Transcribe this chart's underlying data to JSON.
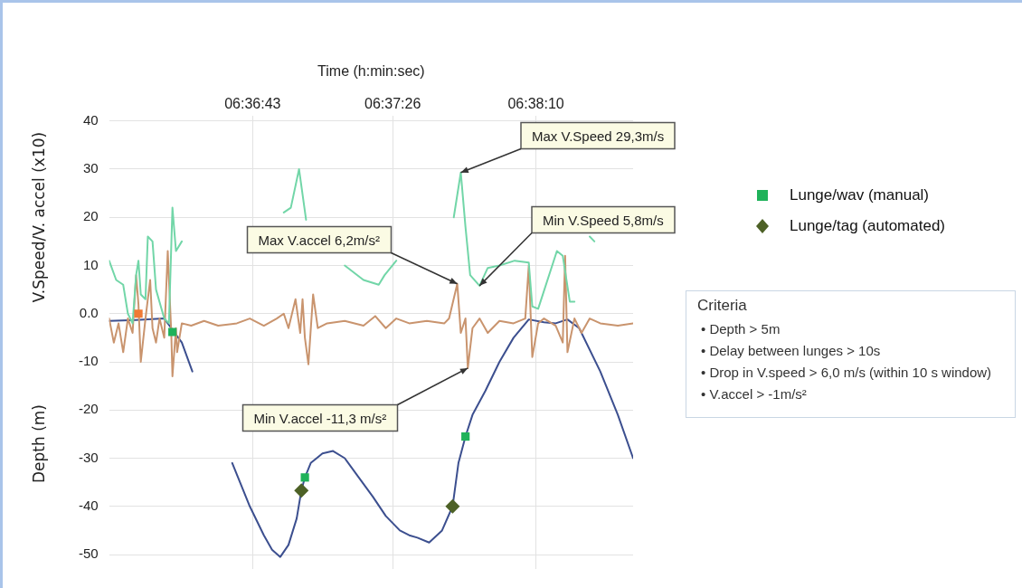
{
  "chart_data": {
    "type": "line",
    "xlabel": "Time (h:min:sec)",
    "ylabel": "V.Speed/V. accel (x10)",
    "y2label": "Depth (m)",
    "xlim": [
      6.5997,
      6.6444
    ],
    "xticks": [
      {
        "value": 6.61194,
        "label": "06:36:43"
      },
      {
        "value": 6.62389,
        "label": "06:37:26"
      },
      {
        "value": 6.63611,
        "label": "06:38:10"
      }
    ],
    "ylim": [
      -53,
      41
    ],
    "yticks": [
      40,
      30,
      20,
      10,
      {
        "value": 0,
        "label": "0.0"
      },
      -10,
      -20,
      -30,
      -40,
      -50
    ],
    "grid": true,
    "legend": "right",
    "series": [
      {
        "color": "#72d6a8",
        "marker": "none",
        "x": [
          6.5997,
          6.6003,
          6.6009,
          6.6013,
          6.6017,
          6.602,
          6.6022,
          6.6024,
          6.6028,
          6.603,
          6.6034,
          6.6037,
          6.6044,
          6.6048,
          6.6051,
          6.6054,
          6.6059,
          6.6067,
          6.6082,
          6.6106,
          6.6136,
          6.6146,
          6.6152,
          6.6159,
          6.6165,
          6.6171,
          6.6188,
          6.6198,
          6.6214,
          6.6227,
          6.6232,
          6.6242,
          6.626,
          6.6276,
          6.6287,
          6.6291,
          6.6297,
          6.6301,
          6.6305,
          6.6313,
          6.632,
          6.633,
          6.6343,
          6.6355,
          6.6358,
          6.6363,
          6.6379,
          6.6384,
          6.639,
          6.6394,
          6.6398,
          6.6407,
          6.6411
        ],
        "values": [
          11,
          7,
          6,
          0,
          -2,
          8,
          11,
          4,
          3,
          16,
          15,
          5,
          -1,
          -2,
          22,
          13,
          15,
          null,
          null,
          null,
          null,
          21,
          22,
          30,
          19.5,
          null,
          null,
          10,
          7,
          6,
          8,
          11,
          null,
          null,
          null,
          20,
          29.3,
          18,
          8,
          5.8,
          9.5,
          10,
          11,
          10.6,
          1.5,
          1,
          13,
          12,
          2.5,
          2.5,
          null,
          16,
          15
        ]
      },
      {
        "color": "#c9946e",
        "marker": "none",
        "x": [
          6.5997,
          6.6001,
          6.6005,
          6.6009,
          6.6013,
          6.6017,
          6.602,
          6.6022,
          6.6024,
          6.6028,
          6.6032,
          6.6034,
          6.6037,
          6.604,
          6.6044,
          6.6047,
          6.605,
          6.6051,
          6.6054,
          6.6055,
          6.6059,
          6.6067,
          6.6078,
          6.609,
          6.6106,
          6.6117,
          6.6129,
          6.614,
          6.6146,
          6.615,
          6.6156,
          6.616,
          6.6162,
          6.6164,
          6.6167,
          6.6171,
          6.6175,
          6.6183,
          6.6198,
          6.6214,
          6.6224,
          6.6233,
          6.6242,
          6.6253,
          6.6268,
          6.6283,
          6.6287,
          6.6294,
          6.6297,
          6.6301,
          6.6303,
          6.6307,
          6.6313,
          6.632,
          6.633,
          6.6342,
          6.6352,
          6.6355,
          6.6358,
          6.6363,
          6.6368,
          6.6378,
          6.6384,
          6.6386,
          6.6388,
          6.6394,
          6.64,
          6.6407,
          6.6416,
          6.6431,
          6.6444
        ],
        "values": [
          -1,
          -6,
          -2,
          -8,
          -1,
          -4,
          8,
          2,
          -10,
          -1,
          7,
          -3,
          -6,
          -1,
          -5,
          13,
          -4,
          -13,
          -3,
          -8,
          -2,
          -2.5,
          -1.5,
          -2.5,
          -2,
          -1,
          -2.5,
          -1,
          0,
          -3,
          3,
          -4,
          3,
          -5,
          -10.5,
          4,
          -3,
          -2,
          -1.5,
          -2.5,
          -0.5,
          -3,
          -1,
          -2,
          -1.5,
          -2,
          -1,
          6.2,
          -4,
          -1,
          -11.3,
          -3,
          -1,
          -4,
          -1.5,
          -2,
          -1,
          10,
          -9,
          -2,
          -1,
          -2.5,
          -6,
          12,
          -8,
          -1,
          -4,
          -1,
          -2,
          -2.5,
          -2
        ]
      },
      {
        "color": "#3c4f8f",
        "marker": "none",
        "x": [
          6.5997,
          6.602,
          6.6044,
          6.605,
          6.6059,
          6.6068,
          6.6078,
          6.6089,
          6.6102,
          6.6117,
          6.6129,
          6.6136,
          6.6143,
          6.615,
          6.6157,
          6.6161,
          6.6164,
          6.6169,
          6.6179,
          6.6188,
          6.6198,
          6.621,
          6.6222,
          6.6233,
          6.6245,
          6.6253,
          6.626,
          6.627,
          6.6281,
          6.629,
          6.6295,
          6.6301,
          6.6307,
          6.6318,
          6.633,
          6.6342,
          6.6355,
          6.6368,
          6.6378,
          6.6388,
          6.6398,
          6.6416,
          6.6431,
          6.6444
        ],
        "values": [
          -1.5,
          -1.3,
          -1,
          -3,
          -6,
          -12,
          null,
          null,
          -31,
          -40,
          -46,
          -49,
          -50.5,
          -48,
          -42.5,
          -36.7,
          -34,
          -31,
          -29,
          -28.5,
          -30,
          -34,
          -38,
          -42,
          -45,
          -46,
          -46.5,
          -47.5,
          -45,
          -40,
          -31,
          -25.5,
          -21,
          -16,
          -10,
          -5,
          -1.2,
          -1.8,
          -2,
          -1.2,
          -3,
          -12,
          -21,
          -30
        ]
      },
      {
        "type": "scatter",
        "color": "#f07a35",
        "marker": "square",
        "x": [
          6.6022
        ],
        "values": [
          0
        ]
      },
      {
        "type": "scatter",
        "name": "Lunge/wav (manual)",
        "color": "#1fb25a",
        "marker": "square",
        "x": [
          6.6051,
          6.6164,
          6.6301
        ],
        "values": [
          -3.8,
          -34,
          -25.5
        ]
      },
      {
        "type": "scatter",
        "name": "Lunge/tag (automated)",
        "color": "#4d6126",
        "marker": "diamond",
        "x": [
          6.6161,
          6.629
        ],
        "values": [
          -36.7,
          -40
        ]
      }
    ],
    "annotations": [
      {
        "text": "Max V.Speed 29,3m/s",
        "x": 6.6297,
        "y": 29.3
      },
      {
        "text": "Min V.Speed 5,8m/s",
        "x": 6.6313,
        "y": 5.8
      },
      {
        "text": "Max V.accel  6,2m/s²",
        "x": 6.6294,
        "y": 6.2
      },
      {
        "text": "Min V.accel  -11,3 m/s²",
        "x": 6.6303,
        "y": -11.3
      },
      "Criteria",
      "• Depth > 5m",
      "• Delay between lunges > 10s",
      "• Drop in V.speed > 6,0 m/s (within 10 s window)",
      "• V.accel > -1m/s²"
    ]
  }
}
